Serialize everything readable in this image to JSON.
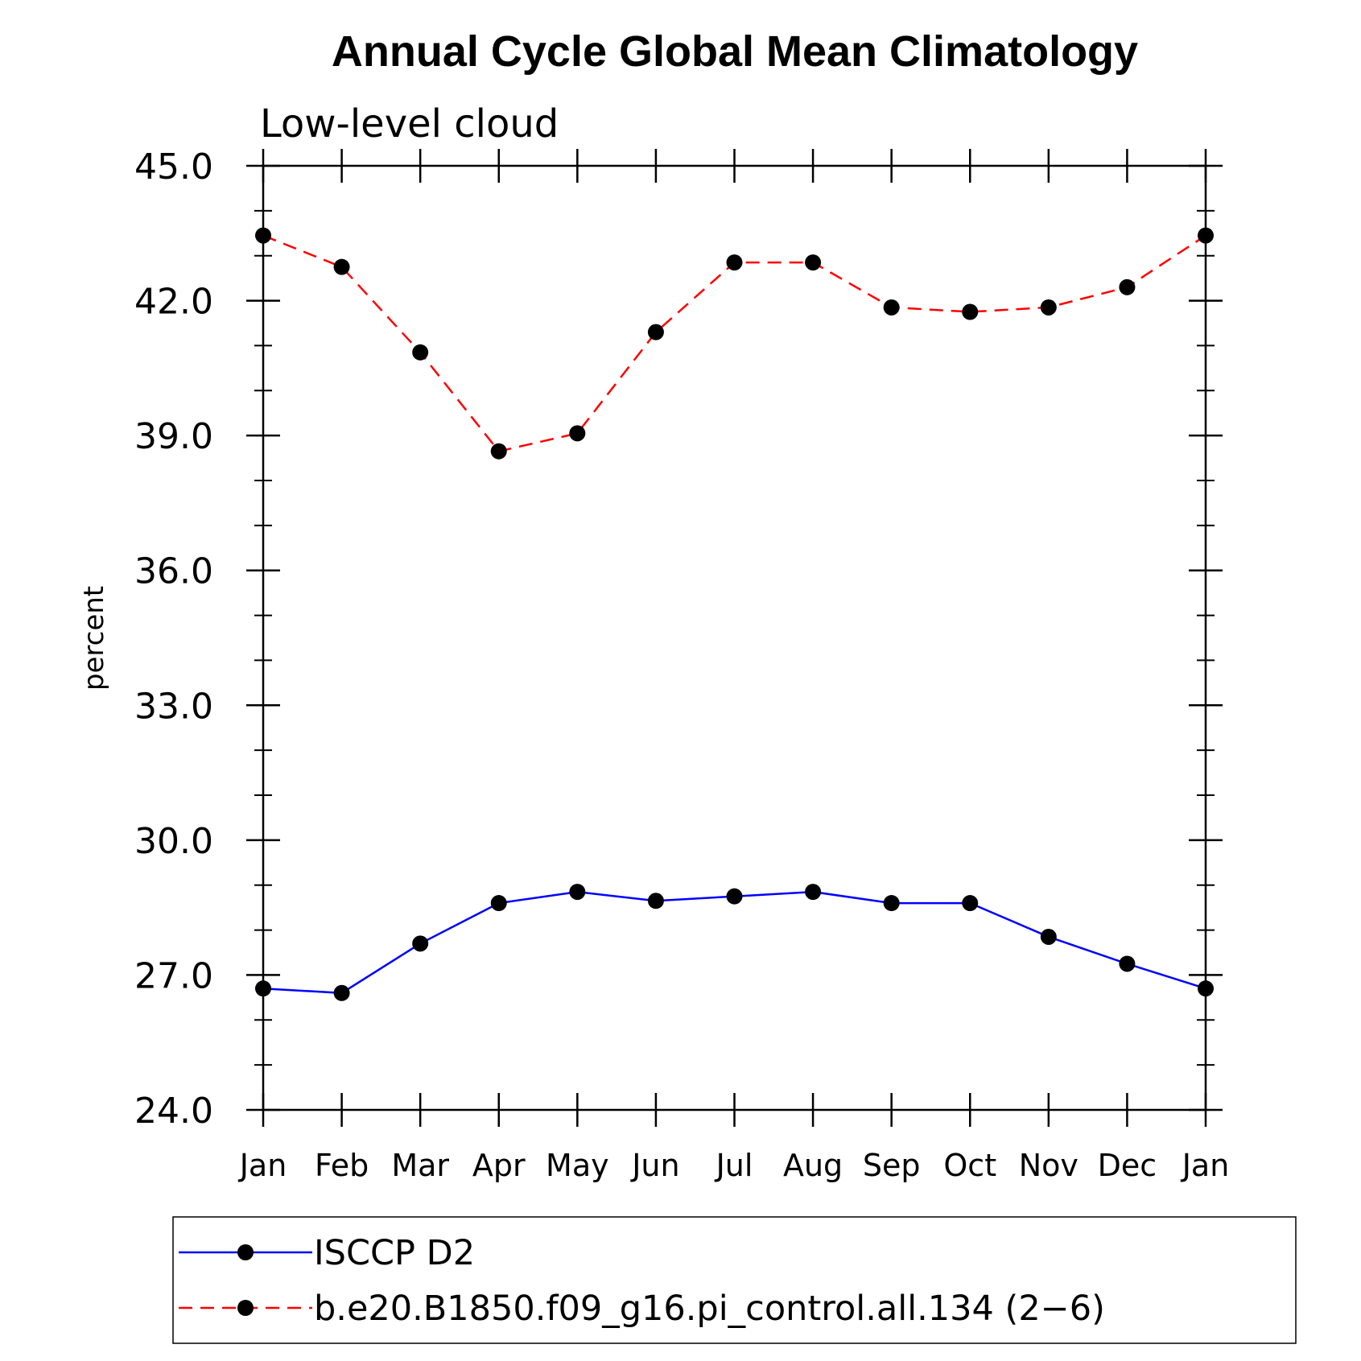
{
  "chart_data": {
    "type": "line",
    "title": "Annual Cycle Global Mean Climatology",
    "subtitle": "Low-level cloud",
    "xlabel": "",
    "ylabel": "percent",
    "ylim": [
      24.0,
      45.0
    ],
    "yticks": [
      "24.0",
      "27.0",
      "30.0",
      "33.0",
      "36.0",
      "39.0",
      "42.0",
      "45.0"
    ],
    "categories": [
      "Jan",
      "Feb",
      "Mar",
      "Apr",
      "May",
      "Jun",
      "Jul",
      "Aug",
      "Sep",
      "Oct",
      "Nov",
      "Dec",
      "Jan"
    ],
    "grid": false,
    "legend_position": "bottom",
    "series": [
      {
        "name": "ISCCP D2",
        "color": "#0000ff",
        "dash": "solid",
        "marker": "filled-circle",
        "values": [
          26.7,
          26.6,
          27.7,
          28.6,
          28.85,
          28.65,
          28.75,
          28.85,
          28.6,
          28.6,
          27.85,
          27.25,
          26.7
        ]
      },
      {
        "name": "b.e20.B1850.f09_g16.pi_control.all.134 (2−6)",
        "color": "#ff0000",
        "dash": "dashed",
        "marker": "filled-circle",
        "values": [
          43.45,
          42.75,
          40.85,
          38.65,
          39.05,
          41.3,
          42.85,
          42.85,
          41.85,
          41.75,
          41.85,
          42.3,
          43.45
        ]
      }
    ]
  }
}
